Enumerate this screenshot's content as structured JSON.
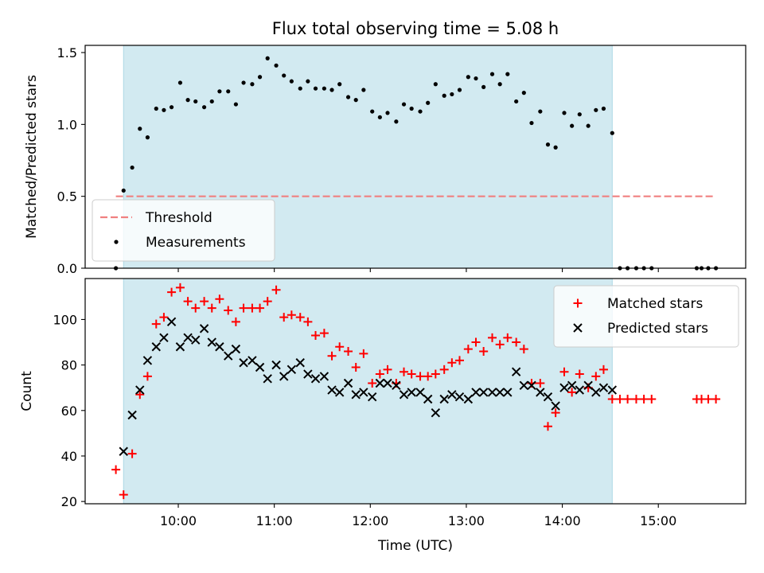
{
  "figure": {
    "title": "Flux total observing time = 5.08 h",
    "xlabel": "Time (UTC)",
    "x_ticks": [
      {
        "value": 10,
        "label": "10:00"
      },
      {
        "value": 11,
        "label": "11:00"
      },
      {
        "value": 12,
        "label": "12:00"
      },
      {
        "value": 13,
        "label": "13:00"
      },
      {
        "value": 14,
        "label": "14:00"
      },
      {
        "value": 15,
        "label": "15:00"
      }
    ],
    "xlim": [
      9.03,
      15.91
    ],
    "shaded_region": {
      "x_start": 9.43,
      "x_end": 14.52,
      "color": "#add8e6"
    }
  },
  "chart_data": [
    {
      "type": "scatter",
      "ylabel": "Matched/Predicted stars",
      "ylim": [
        0,
        1.55
      ],
      "y_ticks": [
        0.0,
        0.5,
        1.0,
        1.5
      ],
      "y_tick_labels": [
        "0.0",
        "0.5",
        "1.0",
        "1.5"
      ],
      "legend_position": "lower-left",
      "threshold": {
        "name": "Threshold",
        "y": 0.5,
        "x_range": [
          9.35,
          15.6
        ],
        "color": "#f08080"
      },
      "series": [
        {
          "name": "Measurements",
          "color": "#000000",
          "marker": "dot",
          "x": [
            9.35,
            9.43,
            9.52,
            9.6,
            9.68,
            9.77,
            9.85,
            9.93,
            10.02,
            10.1,
            10.18,
            10.27,
            10.35,
            10.43,
            10.52,
            10.6,
            10.68,
            10.77,
            10.85,
            10.93,
            11.02,
            11.1,
            11.18,
            11.27,
            11.35,
            11.43,
            11.52,
            11.6,
            11.68,
            11.77,
            11.85,
            11.93,
            12.02,
            12.1,
            12.18,
            12.27,
            12.35,
            12.43,
            12.52,
            12.6,
            12.68,
            12.77,
            12.85,
            12.93,
            13.02,
            13.1,
            13.18,
            13.27,
            13.35,
            13.43,
            13.52,
            13.6,
            13.68,
            13.77,
            13.85,
            13.93,
            14.02,
            14.1,
            14.18,
            14.27,
            14.35,
            14.43,
            14.52,
            14.6,
            14.68,
            14.77,
            14.85,
            14.93,
            15.4,
            15.45,
            15.52,
            15.6
          ],
          "y": [
            0.0,
            0.54,
            0.7,
            0.97,
            0.91,
            1.11,
            1.1,
            1.12,
            1.29,
            1.17,
            1.16,
            1.12,
            1.16,
            1.23,
            1.23,
            1.14,
            1.29,
            1.28,
            1.33,
            1.46,
            1.41,
            1.34,
            1.3,
            1.25,
            1.3,
            1.25,
            1.25,
            1.24,
            1.28,
            1.19,
            1.17,
            1.24,
            1.09,
            1.05,
            1.08,
            1.02,
            1.14,
            1.11,
            1.09,
            1.15,
            1.28,
            1.2,
            1.21,
            1.24,
            1.33,
            1.32,
            1.26,
            1.35,
            1.28,
            1.35,
            1.16,
            1.22,
            1.01,
            1.09,
            0.86,
            0.84,
            1.08,
            0.99,
            1.07,
            0.99,
            1.1,
            1.11,
            0.94,
            0.0,
            0.0,
            0.0,
            0.0,
            0.0,
            0.0,
            0.0,
            0.0,
            0.0
          ]
        }
      ]
    },
    {
      "type": "scatter",
      "ylabel": "Count",
      "ylim": [
        19,
        118
      ],
      "y_ticks": [
        20,
        40,
        60,
        80,
        100
      ],
      "y_tick_labels": [
        "20",
        "40",
        "60",
        "80",
        "100"
      ],
      "legend_position": "upper-right",
      "series": [
        {
          "name": "Matched stars",
          "color": "#ff0000",
          "marker": "plus",
          "x": [
            9.35,
            9.43,
            9.52,
            9.6,
            9.68,
            9.77,
            9.85,
            9.93,
            10.02,
            10.1,
            10.18,
            10.27,
            10.35,
            10.43,
            10.52,
            10.6,
            10.68,
            10.77,
            10.85,
            10.93,
            11.02,
            11.1,
            11.18,
            11.27,
            11.35,
            11.43,
            11.52,
            11.6,
            11.68,
            11.77,
            11.85,
            11.93,
            12.02,
            12.1,
            12.18,
            12.27,
            12.35,
            12.43,
            12.52,
            12.6,
            12.68,
            12.77,
            12.85,
            12.93,
            13.02,
            13.1,
            13.18,
            13.27,
            13.35,
            13.43,
            13.52,
            13.6,
            13.68,
            13.77,
            13.85,
            13.93,
            14.02,
            14.1,
            14.18,
            14.27,
            14.35,
            14.43,
            14.52,
            14.6,
            14.68,
            14.77,
            14.85,
            14.93,
            15.4,
            15.45,
            15.52,
            15.6
          ],
          "y": [
            34,
            23,
            41,
            67,
            75,
            98,
            101,
            112,
            114,
            108,
            105,
            108,
            105,
            109,
            104,
            99,
            105,
            105,
            105,
            108,
            113,
            101,
            102,
            101,
            99,
            93,
            94,
            84,
            88,
            86,
            79,
            85,
            72,
            76,
            78,
            72,
            77,
            76,
            75,
            75,
            76,
            78,
            81,
            82,
            87,
            90,
            86,
            92,
            89,
            92,
            90,
            87,
            72,
            72,
            53,
            59,
            77,
            68,
            76,
            70,
            75,
            78,
            65,
            65,
            65,
            65,
            65,
            65,
            65,
            65,
            65,
            65
          ]
        },
        {
          "name": "Predicted stars",
          "color": "#000000",
          "marker": "x",
          "x": [
            9.43,
            9.52,
            9.6,
            9.68,
            9.77,
            9.85,
            9.93,
            10.02,
            10.1,
            10.18,
            10.27,
            10.35,
            10.43,
            10.52,
            10.6,
            10.68,
            10.77,
            10.85,
            10.93,
            11.02,
            11.1,
            11.18,
            11.27,
            11.35,
            11.43,
            11.52,
            11.6,
            11.68,
            11.77,
            11.85,
            11.93,
            12.02,
            12.1,
            12.18,
            12.27,
            12.35,
            12.43,
            12.52,
            12.6,
            12.68,
            12.77,
            12.85,
            12.93,
            13.02,
            13.1,
            13.18,
            13.27,
            13.35,
            13.43,
            13.52,
            13.6,
            13.68,
            13.77,
            13.85,
            13.93,
            14.02,
            14.1,
            14.18,
            14.27,
            14.35,
            14.43,
            14.52
          ],
          "y": [
            42,
            58,
            69,
            82,
            88,
            92,
            99,
            88,
            92,
            91,
            96,
            90,
            88,
            84,
            87,
            81,
            82,
            79,
            74,
            80,
            75,
            78,
            81,
            76,
            74,
            75,
            69,
            68,
            72,
            67,
            68,
            66,
            72,
            72,
            71,
            67,
            68,
            68,
            65,
            59,
            65,
            67,
            66,
            65,
            68,
            68,
            68,
            68,
            68,
            77,
            71,
            71,
            68,
            66,
            62,
            70,
            71,
            69,
            71,
            68,
            70,
            69
          ]
        }
      ]
    }
  ]
}
